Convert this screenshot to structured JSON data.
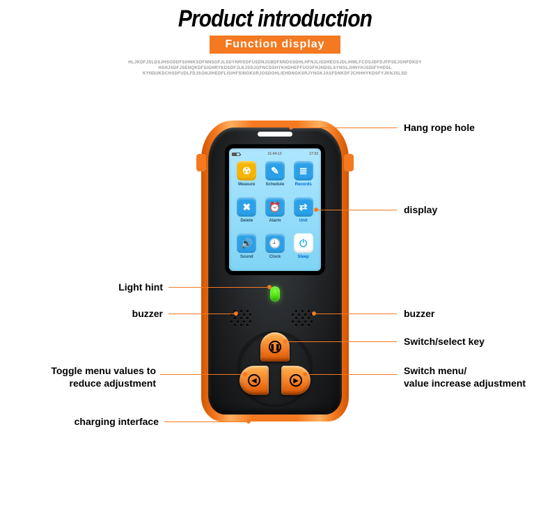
{
  "header": {
    "title": "Product introduction",
    "subtitle": "Function display",
    "lorem1": "HLJKDFJSLDSJHSODDFSIHNKSDFNNSDFJLSDYNRISDFUSDNJGBDFNNDSSDHLHFNJLISDHEOSJDLIHMLFCDSJDFDJFPSEJGNFDKDY",
    "lorem2": "HSHJSDFJSENQKDFSIGHRYKDSDFJLKJSDJGFNCDSHYKHDHEFFUOSFHJNDSLSYNOLJHNYHJSDIFYHDSL",
    "lorem3": "KYNDUKDCHSDFUDLFDJSONJIHEDFLISIHFSINGKSRJOSDOHLIEHDNGKSRJYNGKJASFDNKDFJCHHHYKDSFYJKNJSLSD"
  },
  "colors": {
    "accent": "#f47920",
    "body": "#222426",
    "screen_top": "#aee7ff",
    "screen_bottom": "#7fd4f5",
    "led": "#4be012"
  },
  "status": {
    "date": "21-04-13",
    "time": "17:32"
  },
  "apps": [
    {
      "label": "Measure",
      "bg": "#f7b500",
      "glyph": "☢"
    },
    {
      "label": "Schedule",
      "bg": "#2aa0e8",
      "glyph": "✎"
    },
    {
      "label": "Records",
      "bg": "#2aa0e8",
      "glyph": "≣",
      "selected": true
    },
    {
      "label": "Delete",
      "bg": "#2aa0e8",
      "glyph": "✖"
    },
    {
      "label": "Alarm",
      "bg": "#2aa0e8",
      "glyph": "⏰"
    },
    {
      "label": "Unit",
      "bg": "#2aa0e8",
      "glyph": "⇄",
      "selected": true
    },
    {
      "label": "Sound",
      "bg": "#2aa0e8",
      "glyph": "🔊"
    },
    {
      "label": "Clock",
      "bg": "#2aa0e8",
      "glyph": "🕘"
    },
    {
      "label": "Sleep",
      "bg": "#ffffff",
      "glyph": "⏻",
      "fg": "#27b4e8",
      "selected": true
    }
  ],
  "callouts": {
    "hang": "Hang rope hole",
    "display": "display",
    "light": "Light hint",
    "buzzer": "buzzer",
    "select": "Switch/select key",
    "right_a": "Switch menu/",
    "right_b": "value increase adjustment",
    "left_a": "Toggle menu values to",
    "left_b": "reduce adjustment",
    "charge": "charging interface"
  }
}
